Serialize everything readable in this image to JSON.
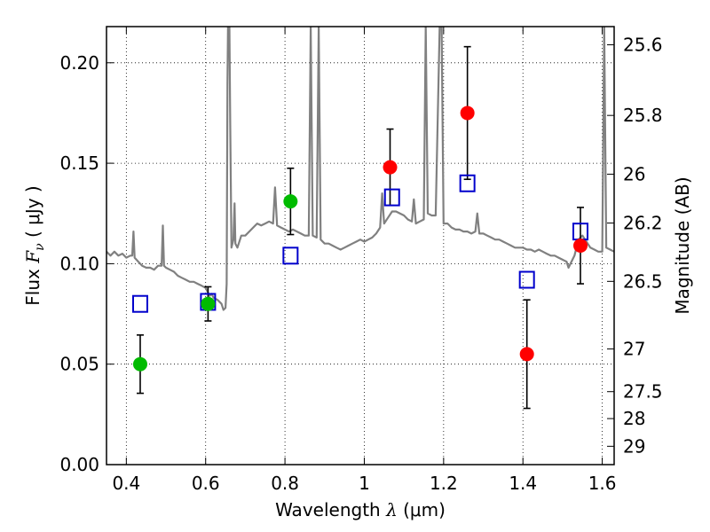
{
  "chart_data": {
    "type": "scatter",
    "xlabel": {
      "prefix": "Wavelength  ",
      "symbol": "λ",
      "unit": " (μm)"
    },
    "ylabel": {
      "prefix": "Flux  ",
      "symbol": "F",
      "sub": "ν",
      "unit": "  ( μJy )"
    },
    "y2label": "Magnitude (AB)",
    "xlim": [
      0.35,
      1.63
    ],
    "ylim": [
      0.0,
      0.218
    ],
    "grid": true,
    "x_ticks": [
      {
        "value": 0.4,
        "label": "0.4"
      },
      {
        "value": 0.6,
        "label": "0.6"
      },
      {
        "value": 0.8,
        "label": "0.8"
      },
      {
        "value": 1.0,
        "label": "1"
      },
      {
        "value": 1.2,
        "label": "1.2"
      },
      {
        "value": 1.4,
        "label": "1.4"
      },
      {
        "value": 1.6,
        "label": "1.6"
      }
    ],
    "y_ticks": [
      {
        "value": 0.0,
        "label": "0.00"
      },
      {
        "value": 0.05,
        "label": "0.05"
      },
      {
        "value": 0.1,
        "label": "0.10"
      },
      {
        "value": 0.15,
        "label": "0.15"
      },
      {
        "value": 0.2,
        "label": "0.20"
      }
    ],
    "y2_ticks": [
      {
        "mag": 25.6,
        "label": "25.6"
      },
      {
        "mag": 25.8,
        "label": "25.8"
      },
      {
        "mag": 26,
        "label": "26"
      },
      {
        "mag": 26.2,
        "label": "26.2"
      },
      {
        "mag": 26.5,
        "label": "26.5"
      },
      {
        "mag": 27,
        "label": "27"
      },
      {
        "mag": 27.5,
        "label": "27.5"
      },
      {
        "mag": 28,
        "label": "28"
      },
      {
        "mag": 29,
        "label": "29"
      }
    ],
    "colors": {
      "green": "#00bb00",
      "red": "#ff0000",
      "model_box": "#0000cc",
      "spectrum": "#808080",
      "errorbar": "#000000"
    },
    "observed_green": [
      {
        "x": 0.435,
        "y": 0.05,
        "err": 0.0145
      },
      {
        "x": 0.606,
        "y": 0.08,
        "err": 0.0085
      },
      {
        "x": 0.814,
        "y": 0.131,
        "err": 0.0165
      }
    ],
    "observed_red": [
      {
        "x": 1.065,
        "y": 0.148,
        "err": 0.019
      },
      {
        "x": 1.26,
        "y": 0.175,
        "err": 0.033
      },
      {
        "x": 1.41,
        "y": 0.055,
        "err": 0.027
      },
      {
        "x": 1.545,
        "y": 0.109,
        "err": 0.019
      }
    ],
    "model_points": [
      {
        "x": 0.435,
        "y": 0.08
      },
      {
        "x": 0.606,
        "y": 0.081
      },
      {
        "x": 0.814,
        "y": 0.104
      },
      {
        "x": 1.07,
        "y": 0.133
      },
      {
        "x": 1.26,
        "y": 0.14
      },
      {
        "x": 1.41,
        "y": 0.092
      },
      {
        "x": 1.545,
        "y": 0.116
      }
    ],
    "spectrum": [
      [
        0.35,
        0.106
      ],
      [
        0.36,
        0.104
      ],
      [
        0.37,
        0.106
      ],
      [
        0.38,
        0.104
      ],
      [
        0.39,
        0.105
      ],
      [
        0.4,
        0.103
      ],
      [
        0.41,
        0.104
      ],
      [
        0.415,
        0.104
      ],
      [
        0.418,
        0.116
      ],
      [
        0.421,
        0.103
      ],
      [
        0.43,
        0.101
      ],
      [
        0.44,
        0.099
      ],
      [
        0.45,
        0.098
      ],
      [
        0.46,
        0.098
      ],
      [
        0.47,
        0.097
      ],
      [
        0.48,
        0.099
      ],
      [
        0.489,
        0.099
      ],
      [
        0.492,
        0.119
      ],
      [
        0.495,
        0.099
      ],
      [
        0.5,
        0.098
      ],
      [
        0.51,
        0.097
      ],
      [
        0.52,
        0.096
      ],
      [
        0.53,
        0.094
      ],
      [
        0.54,
        0.093
      ],
      [
        0.55,
        0.092
      ],
      [
        0.56,
        0.091
      ],
      [
        0.57,
        0.091
      ],
      [
        0.58,
        0.09
      ],
      [
        0.59,
        0.089
      ],
      [
        0.6,
        0.088
      ],
      [
        0.61,
        0.084
      ],
      [
        0.615,
        0.085
      ],
      [
        0.62,
        0.083
      ],
      [
        0.63,
        0.082
      ],
      [
        0.64,
        0.08
      ],
      [
        0.645,
        0.077
      ],
      [
        0.65,
        0.078
      ],
      [
        0.653,
        0.09
      ],
      [
        0.655,
        0.19
      ],
      [
        0.6563,
        0.218
      ],
      [
        0.66,
        0.218
      ],
      [
        0.662,
        0.17
      ],
      [
        0.665,
        0.108
      ],
      [
        0.67,
        0.112
      ],
      [
        0.673,
        0.13
      ],
      [
        0.675,
        0.11
      ],
      [
        0.68,
        0.108
      ],
      [
        0.69,
        0.114
      ],
      [
        0.7,
        0.114
      ],
      [
        0.71,
        0.116
      ],
      [
        0.72,
        0.118
      ],
      [
        0.73,
        0.12
      ],
      [
        0.74,
        0.119
      ],
      [
        0.75,
        0.12
      ],
      [
        0.76,
        0.121
      ],
      [
        0.77,
        0.12
      ],
      [
        0.775,
        0.138
      ],
      [
        0.78,
        0.119
      ],
      [
        0.79,
        0.118
      ],
      [
        0.8,
        0.117
      ],
      [
        0.81,
        0.116
      ],
      [
        0.82,
        0.117
      ],
      [
        0.83,
        0.116
      ],
      [
        0.84,
        0.115
      ],
      [
        0.85,
        0.114
      ],
      [
        0.86,
        0.114
      ],
      [
        0.865,
        0.218
      ],
      [
        0.87,
        0.114
      ],
      [
        0.88,
        0.113
      ],
      [
        0.885,
        0.218
      ],
      [
        0.89,
        0.112
      ],
      [
        0.9,
        0.11
      ],
      [
        0.91,
        0.11
      ],
      [
        0.92,
        0.109
      ],
      [
        0.93,
        0.108
      ],
      [
        0.94,
        0.107
      ],
      [
        0.95,
        0.108
      ],
      [
        0.96,
        0.109
      ],
      [
        0.97,
        0.11
      ],
      [
        0.98,
        0.111
      ],
      [
        0.99,
        0.112
      ],
      [
        1.0,
        0.111
      ],
      [
        1.01,
        0.112
      ],
      [
        1.02,
        0.113
      ],
      [
        1.03,
        0.115
      ],
      [
        1.04,
        0.118
      ],
      [
        1.045,
        0.135
      ],
      [
        1.05,
        0.12
      ],
      [
        1.06,
        0.123
      ],
      [
        1.07,
        0.126
      ],
      [
        1.08,
        0.126
      ],
      [
        1.09,
        0.125
      ],
      [
        1.1,
        0.124
      ],
      [
        1.11,
        0.122
      ],
      [
        1.12,
        0.121
      ],
      [
        1.125,
        0.132
      ],
      [
        1.13,
        0.12
      ],
      [
        1.14,
        0.121
      ],
      [
        1.15,
        0.122
      ],
      [
        1.155,
        0.218
      ],
      [
        1.16,
        0.125
      ],
      [
        1.17,
        0.124
      ],
      [
        1.18,
        0.124
      ],
      [
        1.19,
        0.218
      ],
      [
        1.195,
        0.218
      ],
      [
        1.2,
        0.12
      ],
      [
        1.21,
        0.12
      ],
      [
        1.22,
        0.118
      ],
      [
        1.23,
        0.117
      ],
      [
        1.24,
        0.117
      ],
      [
        1.25,
        0.116
      ],
      [
        1.26,
        0.116
      ],
      [
        1.27,
        0.115
      ],
      [
        1.28,
        0.116
      ],
      [
        1.285,
        0.125
      ],
      [
        1.29,
        0.115
      ],
      [
        1.3,
        0.115
      ],
      [
        1.31,
        0.114
      ],
      [
        1.32,
        0.113
      ],
      [
        1.33,
        0.112
      ],
      [
        1.34,
        0.112
      ],
      [
        1.35,
        0.111
      ],
      [
        1.36,
        0.11
      ],
      [
        1.37,
        0.109
      ],
      [
        1.38,
        0.108
      ],
      [
        1.39,
        0.108
      ],
      [
        1.4,
        0.108
      ],
      [
        1.41,
        0.107
      ],
      [
        1.42,
        0.107
      ],
      [
        1.43,
        0.106
      ],
      [
        1.44,
        0.107
      ],
      [
        1.45,
        0.106
      ],
      [
        1.46,
        0.105
      ],
      [
        1.47,
        0.104
      ],
      [
        1.48,
        0.104
      ],
      [
        1.49,
        0.103
      ],
      [
        1.5,
        0.102
      ],
      [
        1.51,
        0.101
      ],
      [
        1.515,
        0.098
      ],
      [
        1.52,
        0.1
      ],
      [
        1.53,
        0.104
      ],
      [
        1.54,
        0.112
      ],
      [
        1.55,
        0.114
      ],
      [
        1.56,
        0.111
      ],
      [
        1.57,
        0.108
      ],
      [
        1.58,
        0.107
      ],
      [
        1.59,
        0.106
      ],
      [
        1.6,
        0.106
      ],
      [
        1.605,
        0.218
      ],
      [
        1.61,
        0.108
      ],
      [
        1.62,
        0.107
      ],
      [
        1.63,
        0.106
      ]
    ]
  }
}
